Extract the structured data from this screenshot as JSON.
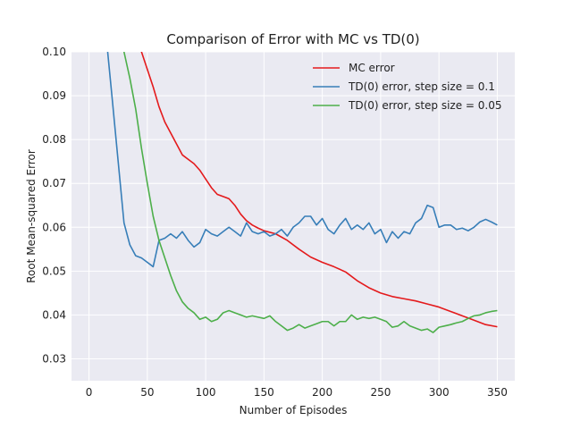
{
  "chart_data": {
    "type": "line",
    "title": "Comparison of Error with MC vs TD(0)",
    "xlabel": "Number of Episodes",
    "ylabel": "Root Mean-squared Error",
    "xlim": [
      -15,
      365
    ],
    "ylim": [
      0.025,
      0.1
    ],
    "xticks": [
      0,
      50,
      100,
      150,
      200,
      250,
      300,
      350
    ],
    "yticks": [
      0.03,
      0.04,
      0.05,
      0.06,
      0.07,
      0.08,
      0.09,
      0.1
    ],
    "ytick_labels": [
      "0.03",
      "0.04",
      "0.05",
      "0.06",
      "0.07",
      "0.08",
      "0.09",
      "0.10"
    ],
    "grid": true,
    "legend_position": "top-right",
    "series": [
      {
        "name": "MC error",
        "color": "#e41a1c",
        "x": [
          35,
          45,
          50,
          55,
          60,
          65,
          70,
          75,
          80,
          85,
          90,
          95,
          100,
          105,
          110,
          115,
          120,
          125,
          130,
          135,
          140,
          145,
          150,
          160,
          170,
          180,
          190,
          200,
          210,
          220,
          230,
          240,
          250,
          260,
          270,
          280,
          290,
          300,
          310,
          320,
          330,
          340,
          350
        ],
        "y": [
          0.112,
          0.1,
          0.096,
          0.092,
          0.0875,
          0.084,
          0.0815,
          0.079,
          0.0765,
          0.0755,
          0.0745,
          0.073,
          0.071,
          0.069,
          0.0675,
          0.067,
          0.0665,
          0.065,
          0.063,
          0.0615,
          0.0605,
          0.0598,
          0.0592,
          0.0585,
          0.057,
          0.055,
          0.0532,
          0.052,
          0.051,
          0.0498,
          0.0478,
          0.0462,
          0.045,
          0.0442,
          0.0437,
          0.0432,
          0.0425,
          0.0418,
          0.0408,
          0.0398,
          0.0388,
          0.0378,
          0.0373
        ]
      },
      {
        "name": "TD(0) error, step size = 0.1",
        "color": "#377eb8",
        "x": [
          16,
          20,
          25,
          30,
          35,
          40,
          45,
          50,
          55,
          60,
          65,
          70,
          75,
          80,
          85,
          90,
          95,
          100,
          105,
          110,
          115,
          120,
          125,
          130,
          135,
          140,
          145,
          150,
          155,
          160,
          165,
          170,
          175,
          180,
          185,
          190,
          195,
          200,
          205,
          210,
          215,
          220,
          225,
          230,
          235,
          240,
          245,
          250,
          255,
          260,
          265,
          270,
          275,
          280,
          285,
          290,
          295,
          300,
          305,
          310,
          315,
          320,
          325,
          330,
          335,
          340,
          345,
          350
        ],
        "y": [
          0.1,
          0.089,
          0.075,
          0.061,
          0.056,
          0.0535,
          0.053,
          0.052,
          0.051,
          0.057,
          0.0575,
          0.0585,
          0.0575,
          0.059,
          0.057,
          0.0555,
          0.0565,
          0.0595,
          0.0585,
          0.058,
          0.059,
          0.06,
          0.059,
          0.058,
          0.061,
          0.059,
          0.0585,
          0.059,
          0.058,
          0.0585,
          0.0595,
          0.058,
          0.06,
          0.061,
          0.0625,
          0.0625,
          0.0605,
          0.062,
          0.0595,
          0.0585,
          0.0605,
          0.062,
          0.0595,
          0.0605,
          0.0595,
          0.061,
          0.0585,
          0.0595,
          0.0565,
          0.059,
          0.0575,
          0.059,
          0.0585,
          0.061,
          0.062,
          0.065,
          0.0645,
          0.06,
          0.0605,
          0.0605,
          0.0595,
          0.0598,
          0.0592,
          0.06,
          0.0612,
          0.0618,
          0.0612,
          0.0605
        ]
      },
      {
        "name": "TD(0) error, step size = 0.05",
        "color": "#4daf4a",
        "x": [
          30,
          35,
          40,
          45,
          50,
          55,
          60,
          65,
          70,
          75,
          80,
          85,
          90,
          95,
          100,
          105,
          110,
          115,
          120,
          125,
          130,
          135,
          140,
          145,
          150,
          155,
          160,
          165,
          170,
          175,
          180,
          185,
          190,
          195,
          200,
          205,
          210,
          215,
          220,
          225,
          230,
          235,
          240,
          245,
          250,
          255,
          260,
          265,
          270,
          275,
          280,
          285,
          290,
          295,
          300,
          305,
          310,
          315,
          320,
          325,
          330,
          335,
          340,
          345,
          350
        ],
        "y": [
          0.1,
          0.094,
          0.087,
          0.078,
          0.07,
          0.0625,
          0.057,
          0.053,
          0.049,
          0.0455,
          0.043,
          0.0415,
          0.0405,
          0.039,
          0.0395,
          0.0385,
          0.039,
          0.0405,
          0.041,
          0.0405,
          0.04,
          0.0395,
          0.0398,
          0.0395,
          0.0392,
          0.0398,
          0.0385,
          0.0375,
          0.0365,
          0.037,
          0.0378,
          0.037,
          0.0375,
          0.038,
          0.0385,
          0.0385,
          0.0375,
          0.0385,
          0.0385,
          0.04,
          0.039,
          0.0395,
          0.0392,
          0.0395,
          0.039,
          0.0385,
          0.0372,
          0.0375,
          0.0385,
          0.0375,
          0.037,
          0.0365,
          0.0368,
          0.036,
          0.0372,
          0.0375,
          0.0378,
          0.0382,
          0.0385,
          0.0392,
          0.0398,
          0.04,
          0.0405,
          0.0408,
          0.041
        ]
      }
    ]
  }
}
